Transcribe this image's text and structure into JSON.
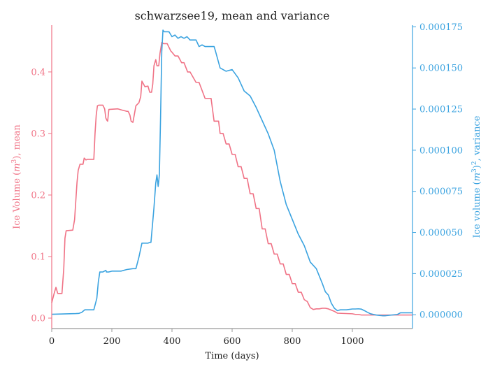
{
  "chart_data": {
    "type": "line",
    "title": "schwarzsee19, mean and variance",
    "xlabel": "Time (days)",
    "ylabel_left": "Ice Volume ($m^3$), mean",
    "ylabel_right": "Ice volume ($m^3$)$^2$, variance",
    "xlim": [
      0,
      1200
    ],
    "ylim_left": [
      -0.017,
      0.476
    ],
    "ylim_right": [
      -8.4e-06,
      0.000176
    ],
    "x_ticks": [
      0,
      200,
      400,
      600,
      800,
      1000
    ],
    "x_tick_labels": [
      "0",
      "200",
      "400",
      "600",
      "800",
      "1000"
    ],
    "y_left_ticks": [
      0.0,
      0.1,
      0.2,
      0.3,
      0.4
    ],
    "y_left_tick_labels": [
      "0.0",
      "0.1",
      "0.2",
      "0.3",
      "0.4"
    ],
    "y_right_ticks": [
      0.0,
      2.5e-05,
      5e-05,
      7.5e-05,
      0.0001,
      0.000125,
      0.00015,
      0.000175
    ],
    "y_right_tick_labels": [
      "0.000000",
      "0.000025",
      "0.000050",
      "0.000075",
      "0.000100",
      "0.000125",
      "0.000150",
      "0.000175"
    ],
    "grid": false,
    "colors": {
      "mean": "#f07386",
      "variance": "#3ba3e0",
      "axis": "#999999"
    },
    "series": [
      {
        "axis": "left",
        "color": "#f07386",
        "x": [
          0,
          8,
          14,
          20,
          34,
          40,
          44,
          48,
          70,
          76,
          80,
          84,
          88,
          94,
          104,
          108,
          114,
          118,
          140,
          144,
          148,
          152,
          156,
          170,
          176,
          180,
          184,
          186,
          190,
          220,
          234,
          250,
          254,
          260,
          264,
          270,
          280,
          290,
          296,
          300,
          310,
          320,
          326,
          332,
          336,
          340,
          346,
          350,
          356,
          360,
          366,
          372,
          376,
          384,
          396,
          400,
          410,
          420,
          432,
          440,
          452,
          460,
          480,
          490,
          510,
          520,
          530,
          540,
          545,
          555,
          560,
          570,
          580,
          590,
          600,
          610,
          620,
          630,
          640,
          650,
          660,
          670,
          680,
          690,
          700,
          710,
          720,
          730,
          740,
          750,
          760,
          770,
          780,
          790,
          800,
          810,
          820,
          830,
          840,
          850,
          860,
          870,
          880,
          890,
          900,
          910,
          920,
          930,
          940,
          950,
          1000,
          1010,
          1020,
          1030,
          1040,
          1050,
          1060,
          1070,
          1080,
          1090,
          1100,
          1110,
          1200
        ],
        "y": [
          0.025,
          0.04,
          0.05,
          0.04,
          0.04,
          0.08,
          0.13,
          0.142,
          0.143,
          0.16,
          0.19,
          0.22,
          0.24,
          0.25,
          0.25,
          0.26,
          0.257,
          0.258,
          0.258,
          0.3,
          0.33,
          0.345,
          0.346,
          0.346,
          0.34,
          0.325,
          0.321,
          0.32,
          0.339,
          0.34,
          0.338,
          0.336,
          0.336,
          0.33,
          0.32,
          0.318,
          0.345,
          0.35,
          0.36,
          0.385,
          0.376,
          0.377,
          0.367,
          0.367,
          0.38,
          0.41,
          0.42,
          0.41,
          0.41,
          0.43,
          0.448,
          0.446,
          0.446,
          0.446,
          0.434,
          0.432,
          0.426,
          0.426,
          0.415,
          0.415,
          0.4,
          0.4,
          0.383,
          0.383,
          0.357,
          0.357,
          0.357,
          0.32,
          0.32,
          0.32,
          0.3,
          0.3,
          0.283,
          0.283,
          0.266,
          0.266,
          0.246,
          0.246,
          0.227,
          0.227,
          0.202,
          0.202,
          0.178,
          0.178,
          0.145,
          0.145,
          0.121,
          0.121,
          0.104,
          0.104,
          0.088,
          0.088,
          0.071,
          0.071,
          0.056,
          0.056,
          0.042,
          0.042,
          0.03,
          0.027,
          0.017,
          0.014,
          0.015,
          0.015,
          0.016,
          0.016,
          0.015,
          0.013,
          0.011,
          0.008,
          0.007,
          0.006,
          0.006,
          0.005,
          0.005,
          0.005,
          0.005,
          0.005,
          0.005,
          0.005,
          0.005,
          0.005,
          0.005
        ]
      },
      {
        "axis": "right",
        "color": "#3ba3e0",
        "x": [
          0,
          20,
          40,
          60,
          80,
          90,
          100,
          110,
          140,
          150,
          155,
          160,
          170,
          180,
          182,
          190,
          200,
          220,
          230,
          240,
          250,
          270,
          280,
          290,
          300,
          310,
          320,
          326,
          330,
          340,
          346,
          350,
          354,
          358,
          362,
          366,
          370,
          374,
          390,
          400,
          410,
          420,
          430,
          440,
          450,
          460,
          470,
          480,
          490,
          500,
          510,
          520,
          540,
          545,
          560,
          580,
          600,
          620,
          640,
          660,
          680,
          700,
          720,
          740,
          760,
          780,
          800,
          820,
          840,
          860,
          880,
          900,
          910,
          920,
          930,
          940,
          950,
          960,
          980,
          1000,
          1010,
          1020,
          1030,
          1040,
          1050,
          1060,
          1070,
          1080,
          1090,
          1100,
          1110,
          1150,
          1160,
          1200
        ],
        "y": [
          3e-07,
          4e-07,
          5e-07,
          6e-07,
          7e-07,
          8e-07,
          1.5e-06,
          3e-06,
          3e-06,
          1e-05,
          2e-05,
          2.6e-05,
          2.6e-05,
          2.7e-05,
          2.6e-05,
          2.6e-05,
          2.65e-05,
          2.65e-05,
          2.65e-05,
          2.7e-05,
          2.75e-05,
          2.8e-05,
          2.8e-05,
          3.5e-05,
          4.35e-05,
          4.35e-05,
          4.35e-05,
          4.4e-05,
          4.4e-05,
          6.5e-05,
          8e-05,
          8.5e-05,
          7.8e-05,
          8.5e-05,
          0.00012,
          0.00016,
          0.000173,
          0.000172,
          0.000172,
          0.000169,
          0.00017,
          0.000168,
          0.000169,
          0.000168,
          0.000169,
          0.000167,
          0.000167,
          0.000167,
          0.000163,
          0.000164,
          0.000163,
          0.000163,
          0.000163,
          0.00016,
          0.00015,
          0.000148,
          0.000149,
          0.000144,
          0.000136,
          0.000133,
          0.000126,
          0.000118,
          0.00011,
          0.0001,
          8.1e-05,
          6.7e-05,
          5.8e-05,
          4.9e-05,
          4.2e-05,
          3.2e-05,
          2.8e-05,
          1.9e-05,
          1.4e-05,
          1.2e-05,
          7e-06,
          4e-06,
          2.5e-06,
          3e-06,
          3e-06,
          3.5e-06,
          3.5e-06,
          3.6e-06,
          3.4e-06,
          2.5e-06,
          1.5e-06,
          6e-07,
          2e-07,
          -2e-07,
          -4e-07,
          -6e-07,
          -6e-07,
          2e-07,
          1.2e-06,
          1.2e-06
        ]
      }
    ]
  }
}
